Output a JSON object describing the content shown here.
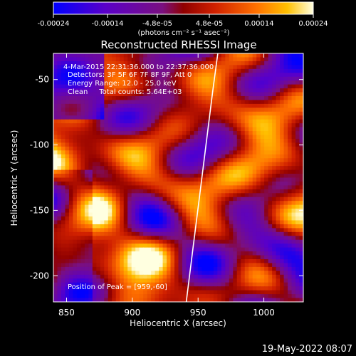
{
  "chart_data": {
    "type": "heatmap",
    "title": "Reconstructed RHESSI Image",
    "xlabel": "Heliocentric X (arcsec)",
    "ylabel": "Heliocentric Y (arcsec)",
    "x_range": [
      840,
      1030
    ],
    "y_range": [
      -220,
      -30
    ],
    "x_ticks": [
      "850",
      "900",
      "950",
      "1000"
    ],
    "y_ticks": [
      "-50",
      "-100",
      "-150",
      "-200"
    ],
    "x_tick_values": [
      850,
      900,
      950,
      1000
    ],
    "y_tick_values": [
      -50,
      -100,
      -150,
      -200
    ],
    "colorbar": {
      "range": [
        -0.00024,
        0.00024
      ],
      "ticks": [
        "-0.00024",
        "-0.00014",
        "-4.8e-05",
        "4.8e-05",
        "0.00014",
        "0.00024"
      ],
      "tick_values": [
        -0.00024,
        -0.00014,
        -4.8e-05,
        4.8e-05,
        0.00014,
        0.00024
      ],
      "units": "(photons cm⁻² s⁻¹ asec⁻²)"
    },
    "annotations": [
      "4-Mar-2015 22:31:36.000 to 22:37:36.000",
      "Detectors: 3F 5F 6F 7F 8F 9F, Att 0",
      "Energy Range: 12.0 - 25.0 keV",
      "Clean     Total counts: 5.64E+03",
      "Position of Peak = [959,-60]"
    ],
    "peak_position": [
      959,
      -60
    ],
    "limb_curve": [
      [
        941,
        -220
      ],
      [
        946,
        -180
      ],
      [
        951,
        -140
      ],
      [
        956,
        -100
      ],
      [
        961,
        -60
      ],
      [
        965,
        -30
      ]
    ],
    "grid": false
  },
  "footer": {
    "date": "19-May-2022 08:07"
  }
}
